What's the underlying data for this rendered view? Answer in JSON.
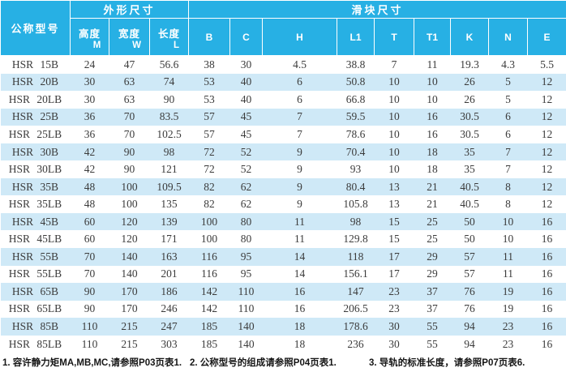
{
  "colors": {
    "header_bg": "#27b0e4",
    "header_text": "#ffffff",
    "row_bg": "#ffffff",
    "row_alt_bg": "#cfe9f7",
    "body_text": "#3b3b3b",
    "footer_text": "#161616"
  },
  "table": {
    "model_header": "公称型号",
    "groups": {
      "outer": "外形尺寸",
      "slider": "滑块尺寸"
    },
    "sub_headers": [
      {
        "label": "高度",
        "letter": "M"
      },
      {
        "label": "宽度",
        "letter": "W"
      },
      {
        "label": "长度",
        "letter": "L"
      },
      {
        "label": "",
        "letter": "B"
      },
      {
        "label": "",
        "letter": "C"
      },
      {
        "label": "",
        "letter": "H"
      },
      {
        "label": "",
        "letter": "L1"
      },
      {
        "label": "",
        "letter": "T"
      },
      {
        "label": "",
        "letter": "T1"
      },
      {
        "label": "",
        "letter": "K"
      },
      {
        "label": "",
        "letter": "N"
      },
      {
        "label": "",
        "letter": "E"
      }
    ],
    "rows": [
      {
        "model": "HSR 15B",
        "values": [
          "24",
          "47",
          "56.6",
          "38",
          "30",
          "4.5",
          "38.8",
          "7",
          "11",
          "19.3",
          "4.3",
          "5.5"
        ]
      },
      {
        "model": "HSR 20B",
        "values": [
          "30",
          "63",
          "74",
          "53",
          "40",
          "6",
          "50.8",
          "10",
          "10",
          "26",
          "5",
          "12"
        ]
      },
      {
        "model": "HSR 20LB",
        "values": [
          "30",
          "63",
          "90",
          "53",
          "40",
          "6",
          "66.8",
          "10",
          "10",
          "26",
          "5",
          "12"
        ]
      },
      {
        "model": "HSR 25B",
        "values": [
          "36",
          "70",
          "83.5",
          "57",
          "45",
          "7",
          "59.5",
          "10",
          "16",
          "30.5",
          "6",
          "12"
        ]
      },
      {
        "model": "HSR 25LB",
        "values": [
          "36",
          "70",
          "102.5",
          "57",
          "45",
          "7",
          "78.6",
          "10",
          "16",
          "30.5",
          "6",
          "12"
        ]
      },
      {
        "model": "HSR 30B",
        "values": [
          "42",
          "90",
          "98",
          "72",
          "52",
          "9",
          "70.4",
          "10",
          "18",
          "35",
          "7",
          "12"
        ]
      },
      {
        "model": "HSR 30LB",
        "values": [
          "42",
          "90",
          "121",
          "72",
          "52",
          "9",
          "93",
          "10",
          "18",
          "35",
          "7",
          "12"
        ]
      },
      {
        "model": "HSR 35B",
        "values": [
          "48",
          "100",
          "109.5",
          "82",
          "62",
          "9",
          "80.4",
          "13",
          "21",
          "40.5",
          "8",
          "12"
        ]
      },
      {
        "model": "HSR 35LB",
        "values": [
          "48",
          "100",
          "135",
          "82",
          "62",
          "9",
          "105.8",
          "13",
          "21",
          "40.5",
          "8",
          "12"
        ]
      },
      {
        "model": "HSR 45B",
        "values": [
          "60",
          "120",
          "139",
          "100",
          "80",
          "11",
          "98",
          "15",
          "25",
          "50",
          "10",
          "16"
        ]
      },
      {
        "model": "HSR 45LB",
        "values": [
          "60",
          "120",
          "171",
          "100",
          "80",
          "11",
          "129.8",
          "15",
          "25",
          "50",
          "10",
          "16"
        ]
      },
      {
        "model": "HSR 55B",
        "values": [
          "70",
          "140",
          "163",
          "116",
          "95",
          "14",
          "118",
          "17",
          "29",
          "57",
          "11",
          "16"
        ]
      },
      {
        "model": "HSR 55LB",
        "values": [
          "70",
          "140",
          "201",
          "116",
          "95",
          "14",
          "156.1",
          "17",
          "29",
          "57",
          "11",
          "16"
        ]
      },
      {
        "model": "HSR 65B",
        "values": [
          "90",
          "170",
          "186",
          "142",
          "110",
          "16",
          "147",
          "23",
          "37",
          "76",
          "19",
          "16"
        ]
      },
      {
        "model": "HSR 65LB",
        "values": [
          "90",
          "170",
          "246",
          "142",
          "110",
          "16",
          "206.5",
          "23",
          "37",
          "76",
          "19",
          "16"
        ]
      },
      {
        "model": "HSR 85B",
        "values": [
          "110",
          "215",
          "247",
          "185",
          "140",
          "18",
          "178.6",
          "30",
          "55",
          "94",
          "23",
          "16"
        ]
      },
      {
        "model": "HSR 85LB",
        "values": [
          "110",
          "215",
          "303",
          "185",
          "140",
          "18",
          "236",
          "30",
          "55",
          "94",
          "23",
          "16"
        ]
      }
    ]
  },
  "footnotes": [
    "1. 容许静力矩MA,MB,MC,请参照P03页表1.",
    "2. 公称型号的组成请参照P04页表1.",
    "3. 导轨的标准长度，请参照P07页表6."
  ]
}
